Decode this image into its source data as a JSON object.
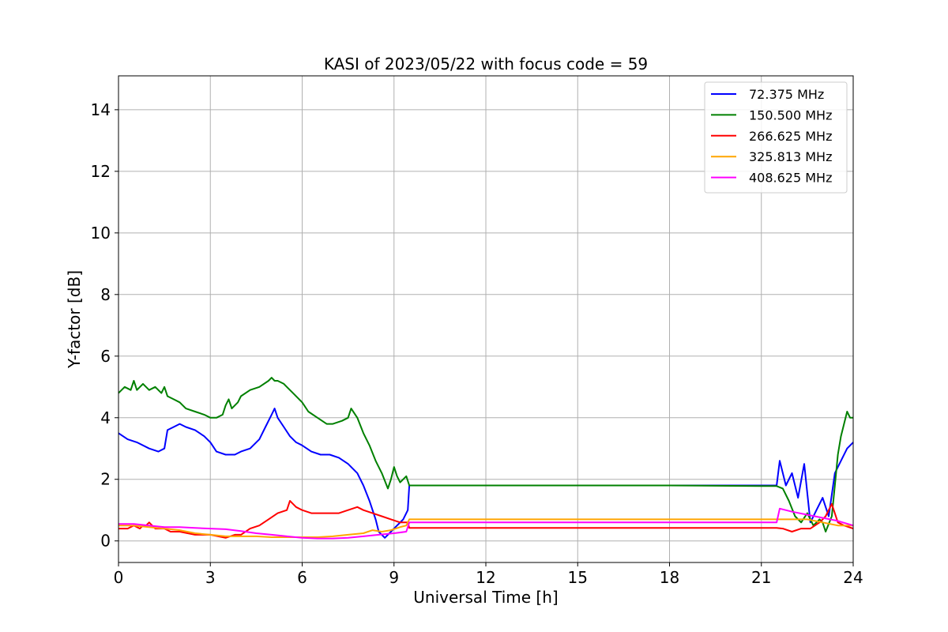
{
  "chart_data": {
    "type": "line",
    "title": "KASI of 2023/05/22 with focus code = 59",
    "xlabel": "Universal Time [h]",
    "ylabel": "Y-factor [dB]",
    "xlim": [
      0,
      24
    ],
    "ylim": [
      -0.7,
      15.1
    ],
    "xticks": [
      0,
      3,
      6,
      9,
      12,
      15,
      18,
      21,
      24
    ],
    "xtick_labels": [
      "0",
      "3",
      "6",
      "9",
      "12",
      "15",
      "18",
      "21",
      "24"
    ],
    "yticks": [
      0,
      2,
      4,
      6,
      8,
      10,
      12,
      14
    ],
    "ytick_labels": [
      "0",
      "2",
      "4",
      "6",
      "8",
      "10",
      "12",
      "14"
    ],
    "grid": true,
    "legend_position": "top-right",
    "series": [
      {
        "name": " 72.375 MHz",
        "color": "#0000ff",
        "x": [
          0,
          0.3,
          0.6,
          1.0,
          1.3,
          1.5,
          1.6,
          1.8,
          2.0,
          2.2,
          2.5,
          2.8,
          3.0,
          3.2,
          3.5,
          3.8,
          4.0,
          4.3,
          4.6,
          4.8,
          5.0,
          5.1,
          5.2,
          5.4,
          5.6,
          5.8,
          6.0,
          6.3,
          6.6,
          6.9,
          7.2,
          7.5,
          7.8,
          8.0,
          8.2,
          8.4,
          8.5,
          8.7,
          8.9,
          9.1,
          9.3,
          9.45,
          9.5,
          12,
          15,
          18,
          21,
          21.5,
          21.6,
          21.8,
          22.0,
          22.2,
          22.4,
          22.6,
          22.8,
          23.0,
          23.2,
          23.4,
          23.6,
          23.8,
          24.0
        ],
        "values": [
          3.5,
          3.3,
          3.2,
          3.0,
          2.9,
          3.0,
          3.6,
          3.7,
          3.8,
          3.7,
          3.6,
          3.4,
          3.2,
          2.9,
          2.8,
          2.8,
          2.9,
          3.0,
          3.3,
          3.7,
          4.1,
          4.3,
          4.0,
          3.7,
          3.4,
          3.2,
          3.1,
          2.9,
          2.8,
          2.8,
          2.7,
          2.5,
          2.2,
          1.8,
          1.3,
          0.7,
          0.3,
          0.1,
          0.3,
          0.5,
          0.7,
          1.0,
          1.8,
          1.8,
          1.8,
          1.8,
          1.8,
          1.8,
          2.6,
          1.8,
          2.2,
          1.4,
          2.5,
          0.6,
          1.0,
          1.4,
          0.8,
          2.2,
          2.6,
          3.0,
          3.2
        ]
      },
      {
        "name": "150.500 MHz",
        "color": "#008000",
        "x": [
          0,
          0.2,
          0.4,
          0.5,
          0.6,
          0.8,
          0.9,
          1.0,
          1.2,
          1.4,
          1.5,
          1.6,
          1.8,
          2.0,
          2.2,
          2.5,
          2.8,
          3.0,
          3.2,
          3.4,
          3.5,
          3.6,
          3.7,
          3.9,
          4.0,
          4.3,
          4.6,
          4.9,
          5.0,
          5.1,
          5.2,
          5.4,
          5.5,
          5.7,
          6.0,
          6.2,
          6.5,
          6.8,
          7.0,
          7.3,
          7.5,
          7.6,
          7.8,
          8.0,
          8.2,
          8.4,
          8.6,
          8.8,
          8.9,
          9.0,
          9.1,
          9.2,
          9.3,
          9.4,
          9.5,
          12,
          15,
          18,
          21,
          21.5,
          21.7,
          21.9,
          22.1,
          22.3,
          22.5,
          22.7,
          22.9,
          23.0,
          23.1,
          23.3,
          23.4,
          23.5,
          23.6,
          23.7,
          23.8,
          23.9,
          24.0
        ],
        "values": [
          4.8,
          5.0,
          4.9,
          5.2,
          4.9,
          5.1,
          5.0,
          4.9,
          5.0,
          4.8,
          5.0,
          4.7,
          4.6,
          4.5,
          4.3,
          4.2,
          4.1,
          4.0,
          4.0,
          4.1,
          4.4,
          4.6,
          4.3,
          4.5,
          4.7,
          4.9,
          5.0,
          5.2,
          5.3,
          5.2,
          5.2,
          5.1,
          5.0,
          4.8,
          4.5,
          4.2,
          4.0,
          3.8,
          3.8,
          3.9,
          4.0,
          4.3,
          4.0,
          3.5,
          3.1,
          2.6,
          2.2,
          1.7,
          2.0,
          2.4,
          2.1,
          1.9,
          2.0,
          2.1,
          1.8,
          1.8,
          1.8,
          1.8,
          1.78,
          1.78,
          1.7,
          1.3,
          0.8,
          0.6,
          0.9,
          0.5,
          0.7,
          0.6,
          0.3,
          0.8,
          1.8,
          2.8,
          3.4,
          3.8,
          4.2,
          4.0,
          4.0
        ]
      },
      {
        "name": "266.625 MHz",
        "color": "#ff0000",
        "x": [
          0,
          0.3,
          0.5,
          0.7,
          0.8,
          0.9,
          1.0,
          1.2,
          1.4,
          1.5,
          1.7,
          2.0,
          2.5,
          3.0,
          3.5,
          3.8,
          4.0,
          4.3,
          4.6,
          4.9,
          5.2,
          5.5,
          5.6,
          5.8,
          6.0,
          6.3,
          6.6,
          6.9,
          7.2,
          7.5,
          7.8,
          8.0,
          8.3,
          8.6,
          8.9,
          9.2,
          9.45,
          9.5,
          12,
          15,
          18,
          21,
          21.5,
          21.7,
          22.0,
          22.3,
          22.6,
          22.9,
          23.0,
          23.1,
          23.3,
          23.5,
          23.7,
          24.0
        ],
        "values": [
          0.4,
          0.4,
          0.5,
          0.4,
          0.5,
          0.5,
          0.6,
          0.4,
          0.4,
          0.4,
          0.3,
          0.3,
          0.2,
          0.2,
          0.1,
          0.2,
          0.2,
          0.4,
          0.5,
          0.7,
          0.9,
          1.0,
          1.3,
          1.1,
          1.0,
          0.9,
          0.9,
          0.9,
          0.9,
          1.0,
          1.1,
          1.0,
          0.9,
          0.8,
          0.7,
          0.6,
          0.6,
          0.42,
          0.42,
          0.42,
          0.42,
          0.42,
          0.42,
          0.4,
          0.3,
          0.4,
          0.4,
          0.6,
          0.7,
          0.8,
          1.2,
          0.6,
          0.5,
          0.4
        ]
      },
      {
        "name": "325.813 MHz",
        "color": "#ffa500",
        "x": [
          0,
          0.5,
          1.0,
          1.5,
          2.0,
          2.5,
          3.0,
          3.5,
          4.0,
          4.5,
          5.0,
          5.5,
          6.0,
          6.5,
          7.0,
          7.5,
          8.0,
          8.3,
          8.6,
          8.9,
          9.2,
          9.4,
          9.5,
          12,
          15,
          18,
          21,
          21.5,
          22.0,
          22.5,
          23.0,
          23.5,
          24.0
        ],
        "values": [
          0.5,
          0.5,
          0.45,
          0.4,
          0.35,
          0.25,
          0.2,
          0.15,
          0.15,
          0.15,
          0.12,
          0.12,
          0.12,
          0.12,
          0.15,
          0.2,
          0.25,
          0.35,
          0.3,
          0.35,
          0.45,
          0.5,
          0.7,
          0.7,
          0.7,
          0.7,
          0.7,
          0.7,
          0.7,
          0.7,
          0.6,
          0.5,
          0.5
        ]
      },
      {
        "name": "408.625 MHz",
        "color": "#ff00ff",
        "x": [
          0,
          0.5,
          1.0,
          1.5,
          2.0,
          2.5,
          3.0,
          3.5,
          4.0,
          4.5,
          5.0,
          5.5,
          6.0,
          6.5,
          7.0,
          7.5,
          8.0,
          8.5,
          9.0,
          9.4,
          9.5,
          12,
          15,
          18,
          21,
          21.5,
          21.6,
          22.0,
          22.5,
          23.0,
          23.5,
          24.0
        ],
        "values": [
          0.55,
          0.55,
          0.5,
          0.45,
          0.45,
          0.42,
          0.4,
          0.38,
          0.32,
          0.25,
          0.2,
          0.15,
          0.1,
          0.08,
          0.08,
          0.1,
          0.15,
          0.2,
          0.25,
          0.3,
          0.6,
          0.6,
          0.6,
          0.6,
          0.6,
          0.6,
          1.05,
          0.95,
          0.85,
          0.75,
          0.65,
          0.5
        ]
      }
    ]
  }
}
